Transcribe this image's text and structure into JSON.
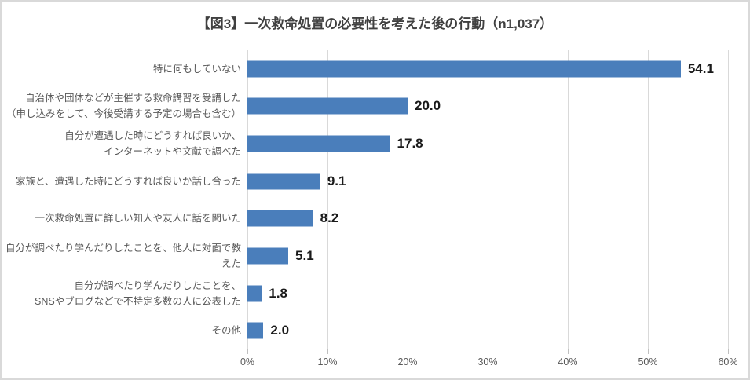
{
  "title": "【図3】一次救命処置の必要性を考えた後の行動（n1,037）",
  "chart_data": {
    "type": "bar",
    "orientation": "horizontal",
    "title": "【図3】一次救命処置の必要性を考えた後の行動（n1,037）",
    "categories": [
      "特に何もしていない",
      "自治体や団体などが主催する救命講習を受講した\n（申し込みをして、今後受講する予定の場合も含む）",
      "自分が遭遇した時にどうすれば良いか、\nインターネットや文献で調べた",
      "家族と、遭遇した時にどうすれば良いか話し合った",
      "一次救命処置に詳しい知人や友人に話を聞いた",
      "自分が調べたり学んだりしたことを、他人に対面で教えた",
      "自分が調べたり学んだりしたことを、\nSNSやブログなどで不特定多数の人に公表した",
      "その他"
    ],
    "values": [
      54.1,
      20.0,
      17.8,
      9.1,
      8.2,
      5.1,
      1.8,
      2.0
    ],
    "value_labels": [
      "54.1",
      "20.0",
      "17.8",
      "9.1",
      "8.2",
      "5.1",
      "1.8",
      "2.0"
    ],
    "xlabel": "",
    "ylabel": "",
    "xlim": [
      0,
      60
    ],
    "x_ticks": [
      "0%",
      "10%",
      "20%",
      "30%",
      "40%",
      "50%",
      "60%"
    ],
    "x_tick_values": [
      0,
      10,
      20,
      30,
      40,
      50,
      60
    ],
    "grid": true,
    "legend": false
  },
  "colors": {
    "bar": "#4a7ebb",
    "gridline": "#d9d9d9",
    "tick": "#bfbfbf",
    "axis_label": "#595959",
    "category_label": "#595959",
    "title": "#404040",
    "value_label": "#1a1a1a",
    "border": "#d9d9d9",
    "background": "#ffffff"
  }
}
